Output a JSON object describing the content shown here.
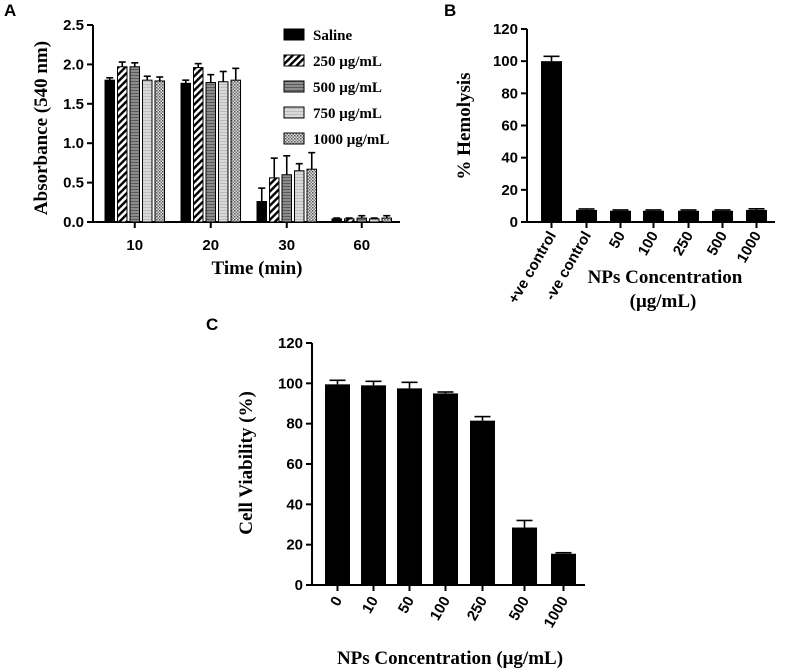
{
  "chart_data": [
    {
      "panel": "A",
      "type": "bar",
      "xlabel": "Time (min)",
      "ylabel": "Absorbance (540 nm)",
      "ylim": [
        0,
        2.5
      ],
      "yticks": [
        "0.0",
        "0.5",
        "1.0",
        "1.5",
        "2.0",
        "2.5"
      ],
      "categories": [
        "10",
        "20",
        "30",
        "60"
      ],
      "legend_position": "top-right",
      "series": [
        {
          "name": "Saline",
          "pattern": "solid",
          "values": [
            1.8,
            1.76,
            0.26,
            0.04
          ],
          "errors": [
            0.03,
            0.04,
            0.17,
            0.01
          ]
        },
        {
          "name": "250 μg/mL",
          "pattern": "diagonal",
          "values": [
            1.97,
            1.96,
            0.56,
            0.04
          ],
          "errors": [
            0.06,
            0.05,
            0.25,
            0.01
          ]
        },
        {
          "name": "500 μg/mL",
          "pattern": "gray",
          "values": [
            1.97,
            1.77,
            0.6,
            0.05
          ],
          "errors": [
            0.05,
            0.1,
            0.24,
            0.03
          ]
        },
        {
          "name": "750 μg/mL",
          "pattern": "light",
          "values": [
            1.8,
            1.78,
            0.65,
            0.04
          ],
          "errors": [
            0.05,
            0.13,
            0.09,
            0.01
          ]
        },
        {
          "name": "1000 μg/mL",
          "pattern": "dotted",
          "values": [
            1.79,
            1.8,
            0.67,
            0.05
          ],
          "errors": [
            0.05,
            0.15,
            0.21,
            0.03
          ]
        }
      ]
    },
    {
      "panel": "B",
      "type": "bar",
      "xlabel": "NPs Concentration\n(μg/mL)",
      "ylabel": "% Hemolysis",
      "ylim": [
        0,
        120
      ],
      "yticks": [
        "0",
        "20",
        "40",
        "60",
        "80",
        "100",
        "120"
      ],
      "categories": [
        "+ve control",
        "-ve control",
        "50",
        "100",
        "250",
        "500",
        "1000"
      ],
      "values": [
        100,
        7.5,
        7,
        7,
        7,
        7,
        7.5
      ],
      "errors": [
        3,
        0.6,
        0.5,
        0.5,
        0.5,
        0.5,
        0.7
      ]
    },
    {
      "panel": "C",
      "type": "bar",
      "xlabel": "NPs Concentration (μg/mL)",
      "ylabel": "Cell Viability (%)",
      "ylim": [
        0,
        120
      ],
      "yticks": [
        "0",
        "20",
        "40",
        "60",
        "80",
        "100",
        "120"
      ],
      "categories": [
        "0",
        "10",
        "50",
        "100",
        "250",
        "500",
        "1000"
      ],
      "values": [
        99.5,
        99,
        97.5,
        95,
        81.5,
        28.5,
        15.5
      ],
      "errors": [
        2,
        2,
        3,
        0.7,
        2,
        3.5,
        0.5
      ]
    }
  ]
}
